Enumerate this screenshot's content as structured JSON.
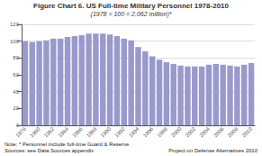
{
  "chart_data": {
    "type": "bar",
    "title": "Figure Chart 6. US Full-time Military Personnel 1978-2010",
    "subtitle": "(1978 = 100 = 2.062 million)*",
    "annotations": [
      "Note: * Personnel include full-time Guard & Reserve\nSources: see Data Sources appendix",
      "Project on Defense Alternatives 2010"
    ],
    "categories": [
      "1978",
      null,
      "1980",
      null,
      "1982",
      null,
      "1984",
      null,
      "1986",
      null,
      "1988",
      null,
      "1990",
      null,
      "1992",
      null,
      "1994",
      null,
      "1996",
      null,
      "1998",
      null,
      "2000",
      null,
      "2002",
      null,
      "2004",
      null,
      "2006",
      null,
      "2008",
      null,
      "2010"
    ],
    "values": [
      100,
      99,
      100,
      101,
      103,
      103,
      105,
      106,
      107,
      109,
      109,
      109,
      108,
      106,
      103,
      101,
      93,
      88,
      82,
      78,
      75,
      73,
      71,
      70,
      70,
      70,
      72,
      73,
      72,
      71,
      70,
      72,
      74
    ],
    "color": "#9999cc",
    "ylim": [
      0,
      120
    ],
    "yticks": [
      0,
      20,
      40,
      60,
      80,
      100,
      120
    ],
    "grid": true
  }
}
